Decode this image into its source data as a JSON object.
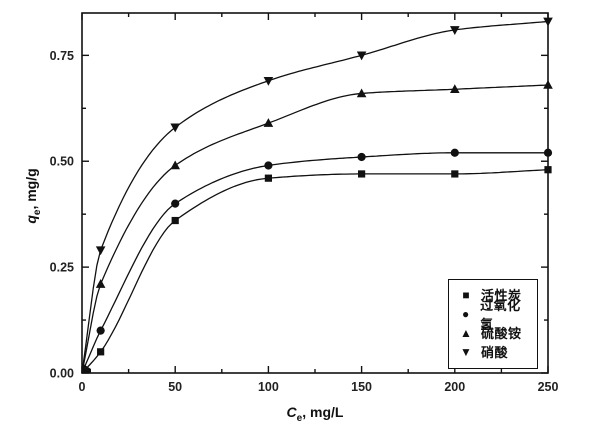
{
  "chart_data": {
    "type": "line",
    "title": "",
    "xlabel": {
      "var": "C",
      "sub": "e",
      "rest": ", mg/L"
    },
    "ylabel": {
      "var": "q",
      "sub": "e",
      "rest": ", mg/g"
    },
    "x": [
      10,
      50,
      100,
      150,
      200,
      250
    ],
    "series": [
      {
        "name": "活性炭",
        "marker": "square",
        "glyph": "■",
        "values": [
          0.05,
          0.36,
          0.46,
          0.47,
          0.47,
          0.48
        ]
      },
      {
        "name": "过氧化氢",
        "marker": "circle",
        "glyph": "●",
        "values": [
          0.1,
          0.4,
          0.49,
          0.51,
          0.52,
          0.52
        ]
      },
      {
        "name": "硫酸铵",
        "marker": "triangle-up",
        "glyph": "▲",
        "values": [
          0.21,
          0.49,
          0.59,
          0.66,
          0.67,
          0.68
        ]
      },
      {
        "name": "硝酸",
        "marker": "triangle-down",
        "glyph": "▼",
        "values": [
          0.29,
          0.58,
          0.69,
          0.75,
          0.81,
          0.83
        ]
      }
    ],
    "xlim": [
      0,
      250
    ],
    "ylim": [
      0,
      0.85
    ],
    "x_major_ticks": [
      0,
      50,
      100,
      150,
      200,
      250
    ],
    "y_major_ticks": [
      "0.00",
      "0.25",
      "0.50",
      "0.75"
    ],
    "x_minor_step": 25,
    "y_minor_step": 0.125,
    "curves_start_at_origin": true,
    "grid": false,
    "legend_position": "lower-right",
    "line_color": "#111111",
    "tick_label_color": "#222222",
    "background": "#ffffff"
  }
}
